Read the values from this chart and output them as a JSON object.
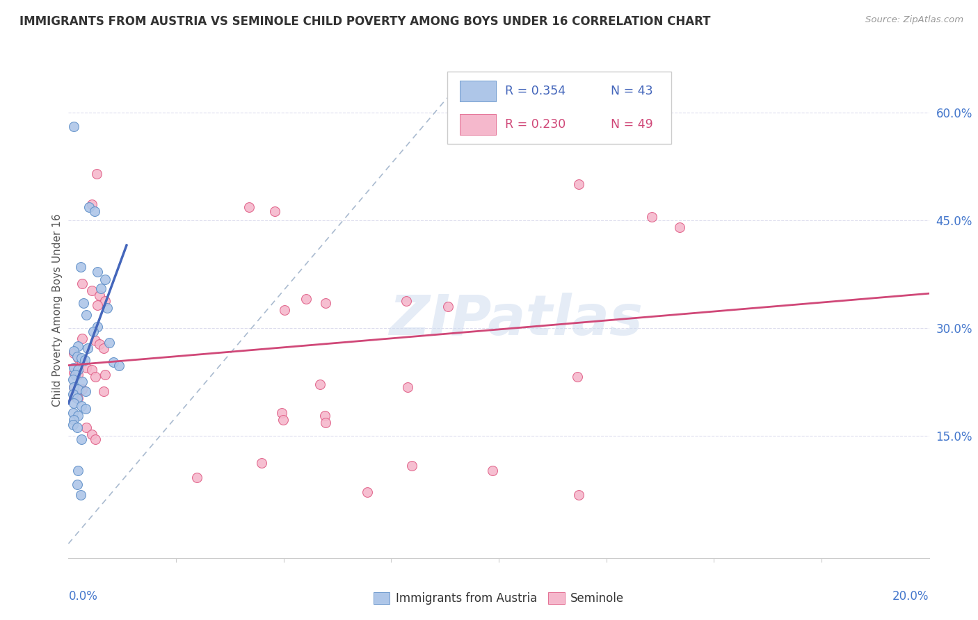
{
  "title": "IMMIGRANTS FROM AUSTRIA VS SEMINOLE CHILD POVERTY AMONG BOYS UNDER 16 CORRELATION CHART",
  "source": "Source: ZipAtlas.com",
  "ylabel": "Child Poverty Among Boys Under 16",
  "right_yticks": [
    "15.0%",
    "30.0%",
    "45.0%",
    "60.0%"
  ],
  "right_ytick_vals": [
    0.15,
    0.3,
    0.45,
    0.6
  ],
  "xlim": [
    0.0,
    0.2
  ],
  "ylim": [
    -0.02,
    0.67
  ],
  "watermark": "ZIPatlas",
  "blue_color": "#aec6e8",
  "blue_edge_color": "#6090c8",
  "blue_line_color": "#4466bb",
  "pink_color": "#f5b8cc",
  "pink_edge_color": "#e06088",
  "pink_line_color": "#d04878",
  "blue_scatter": [
    [
      0.0012,
      0.58
    ],
    [
      0.0048,
      0.468
    ],
    [
      0.006,
      0.462
    ],
    [
      0.0028,
      0.385
    ],
    [
      0.0068,
      0.378
    ],
    [
      0.0085,
      0.368
    ],
    [
      0.0075,
      0.355
    ],
    [
      0.0035,
      0.335
    ],
    [
      0.009,
      0.328
    ],
    [
      0.0042,
      0.318
    ],
    [
      0.0068,
      0.302
    ],
    [
      0.0058,
      0.295
    ],
    [
      0.0095,
      0.28
    ],
    [
      0.0022,
      0.275
    ],
    [
      0.0045,
      0.272
    ],
    [
      0.0012,
      0.268
    ],
    [
      0.002,
      0.26
    ],
    [
      0.003,
      0.258
    ],
    [
      0.0038,
      0.255
    ],
    [
      0.0105,
      0.252
    ],
    [
      0.0118,
      0.248
    ],
    [
      0.0012,
      0.245
    ],
    [
      0.0022,
      0.242
    ],
    [
      0.0015,
      0.235
    ],
    [
      0.001,
      0.228
    ],
    [
      0.0032,
      0.225
    ],
    [
      0.0012,
      0.218
    ],
    [
      0.0022,
      0.215
    ],
    [
      0.004,
      0.212
    ],
    [
      0.001,
      0.208
    ],
    [
      0.002,
      0.202
    ],
    [
      0.0012,
      0.195
    ],
    [
      0.003,
      0.192
    ],
    [
      0.004,
      0.188
    ],
    [
      0.001,
      0.182
    ],
    [
      0.0022,
      0.178
    ],
    [
      0.0012,
      0.172
    ],
    [
      0.001,
      0.165
    ],
    [
      0.002,
      0.162
    ],
    [
      0.003,
      0.145
    ],
    [
      0.0022,
      0.102
    ],
    [
      0.002,
      0.082
    ],
    [
      0.0028,
      0.068
    ]
  ],
  "pink_scatter": [
    [
      0.0065,
      0.515
    ],
    [
      0.0055,
      0.472
    ],
    [
      0.042,
      0.468
    ],
    [
      0.048,
      0.462
    ],
    [
      0.1185,
      0.5
    ],
    [
      0.1355,
      0.455
    ],
    [
      0.142,
      0.44
    ],
    [
      0.0032,
      0.362
    ],
    [
      0.0055,
      0.352
    ],
    [
      0.0072,
      0.345
    ],
    [
      0.0085,
      0.338
    ],
    [
      0.0068,
      0.332
    ],
    [
      0.0552,
      0.34
    ],
    [
      0.0785,
      0.338
    ],
    [
      0.0032,
      0.285
    ],
    [
      0.0062,
      0.282
    ],
    [
      0.0072,
      0.278
    ],
    [
      0.0082,
      0.272
    ],
    [
      0.0598,
      0.335
    ],
    [
      0.0502,
      0.325
    ],
    [
      0.0882,
      0.33
    ],
    [
      0.0012,
      0.265
    ],
    [
      0.0022,
      0.258
    ],
    [
      0.0032,
      0.252
    ],
    [
      0.0042,
      0.245
    ],
    [
      0.0055,
      0.242
    ],
    [
      0.0012,
      0.238
    ],
    [
      0.0022,
      0.235
    ],
    [
      0.0062,
      0.232
    ],
    [
      0.0012,
      0.218
    ],
    [
      0.0032,
      0.215
    ],
    [
      0.0082,
      0.212
    ],
    [
      0.0012,
      0.205
    ],
    [
      0.0022,
      0.202
    ],
    [
      0.0585,
      0.222
    ],
    [
      0.0788,
      0.218
    ],
    [
      0.0495,
      0.182
    ],
    [
      0.0595,
      0.178
    ],
    [
      0.1182,
      0.232
    ],
    [
      0.0448,
      0.112
    ],
    [
      0.0798,
      0.108
    ],
    [
      0.0985,
      0.102
    ],
    [
      0.0695,
      0.072
    ],
    [
      0.1185,
      0.068
    ],
    [
      0.0498,
      0.172
    ],
    [
      0.0598,
      0.168
    ],
    [
      0.0298,
      0.092
    ],
    [
      0.0042,
      0.162
    ],
    [
      0.0055,
      0.152
    ],
    [
      0.0062,
      0.145
    ],
    [
      0.0085,
      0.235
    ]
  ],
  "blue_trendline_x": [
    0.0,
    0.0135
  ],
  "blue_trendline_y": [
    0.195,
    0.415
  ],
  "pink_trendline_x": [
    0.0,
    0.2
  ],
  "pink_trendline_y": [
    0.248,
    0.348
  ],
  "diag_line_x": [
    0.0,
    0.088
  ],
  "diag_line_y": [
    0.0,
    0.62
  ],
  "diag_color": "#aabbd0",
  "grid_color": "#ddddee",
  "grid_yticks": [
    0.15,
    0.3,
    0.45,
    0.6
  ],
  "xtick_positions": [
    0.0,
    0.025,
    0.05,
    0.075,
    0.1,
    0.125,
    0.15,
    0.175,
    0.2
  ]
}
